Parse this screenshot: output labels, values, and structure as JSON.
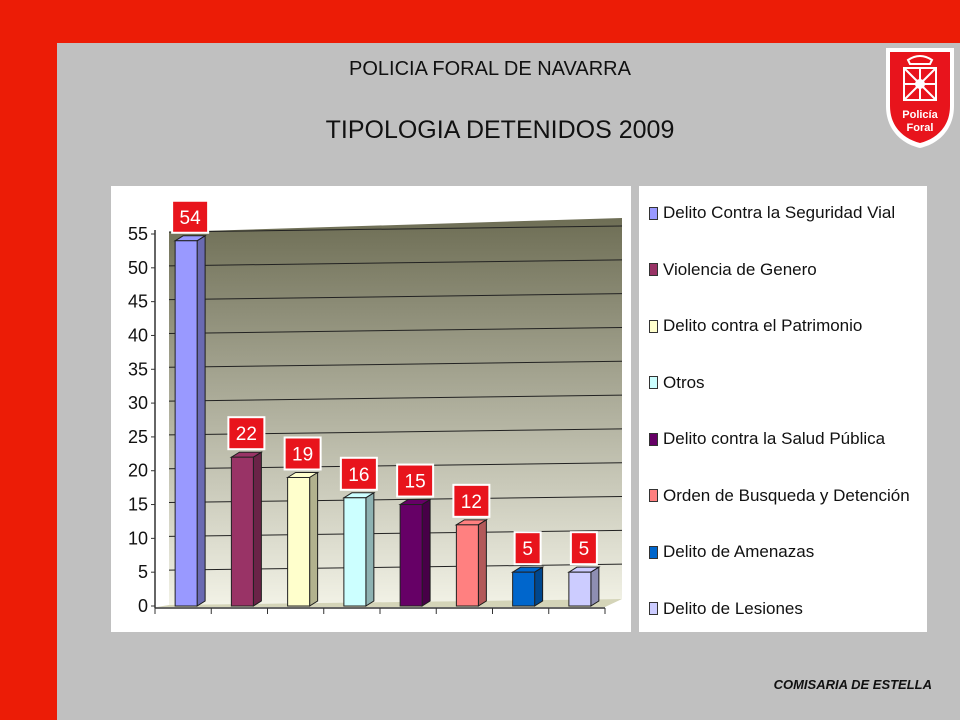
{
  "header": {
    "organization": "POLICIA FORAL DE NAVARRA",
    "title": "TIPOLOGIA DETENIDOS 2009"
  },
  "footer": {
    "text": "COMISARIA DE ESTELLA"
  },
  "logo": {
    "line1": "Policía",
    "line2": "Foral",
    "icon": "navarra-shield-icon"
  },
  "colors": {
    "border_red": "#ec1c06",
    "slide_bg": "#c0c0c0",
    "label_red": "#e8141c"
  },
  "chart_data": {
    "type": "bar",
    "title": "TIPOLOGIA DETENIDOS 2009",
    "xlabel": "",
    "ylabel": "",
    "ylim": [
      0,
      55
    ],
    "yticks": [
      0,
      5,
      10,
      15,
      20,
      25,
      30,
      35,
      40,
      45,
      50,
      55
    ],
    "grid": true,
    "legend_position": "right",
    "categories": [
      "Delito Contra la Seguridad Vial",
      "Violencia de Genero",
      "Delito contra el Patrimonio",
      "Otros",
      "Delito contra la Salud Pública",
      "Orden de Busqueda y Detención",
      "Delito de Amenazas",
      "Delito de Lesiones"
    ],
    "values": [
      54,
      22,
      19,
      16,
      15,
      12,
      5,
      5
    ],
    "colors": [
      "#9999ff",
      "#993366",
      "#ffffcc",
      "#ccffff",
      "#660066",
      "#ff8080",
      "#0066cc",
      "#ccccff"
    ]
  }
}
